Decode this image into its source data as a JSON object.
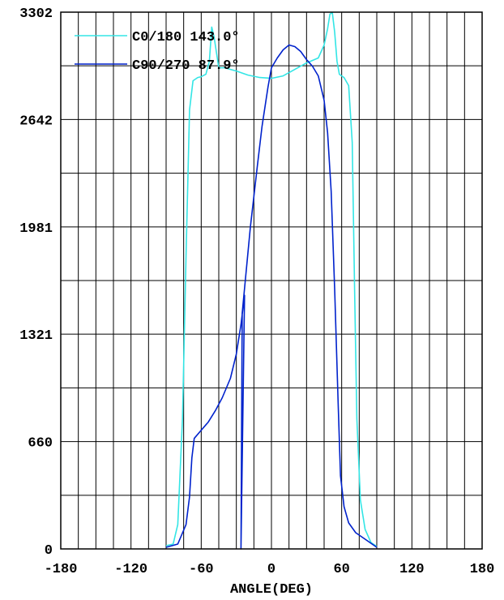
{
  "chart_data": {
    "type": "line",
    "title": "",
    "xlabel": "ANGLE(DEG)",
    "ylabel": "",
    "xlim": [
      -180,
      180
    ],
    "ylim": [
      0,
      3302
    ],
    "x_ticks": [
      -180,
      -120,
      -60,
      0,
      60,
      120,
      180
    ],
    "x_tick_labels": [
      "-180",
      "-120",
      "-60",
      "0",
      "60",
      "120",
      "180"
    ],
    "y_ticks": [
      0,
      660,
      1321,
      1981,
      2642,
      3302
    ],
    "y_tick_labels": [
      "0",
      "660",
      "1321",
      "1981",
      "2642",
      "3302"
    ],
    "grid": true,
    "legend_position": "top-left",
    "series": [
      {
        "name": "C0/180",
        "label": "C0/180 143.0°",
        "color": "#33e5e5",
        "points": [
          [
            -90,
            20
          ],
          [
            -84,
            30
          ],
          [
            -80,
            150
          ],
          [
            -76,
            800
          ],
          [
            -73,
            1800
          ],
          [
            -70,
            2700
          ],
          [
            -67,
            2880
          ],
          [
            -63,
            2900
          ],
          [
            -60,
            2905
          ],
          [
            -56,
            2920
          ],
          [
            -53,
            3000
          ],
          [
            -51,
            3210
          ],
          [
            -49,
            3150
          ],
          [
            -45,
            2960
          ],
          [
            -40,
            2960
          ],
          [
            -30,
            2940
          ],
          [
            -20,
            2915
          ],
          [
            -10,
            2900
          ],
          [
            0,
            2895
          ],
          [
            10,
            2910
          ],
          [
            20,
            2950
          ],
          [
            30,
            2990
          ],
          [
            40,
            3020
          ],
          [
            45,
            3100
          ],
          [
            48,
            3200
          ],
          [
            50,
            3290
          ],
          [
            52,
            3300
          ],
          [
            54,
            3180
          ],
          [
            56,
            3000
          ],
          [
            58,
            2920
          ],
          [
            62,
            2900
          ],
          [
            66,
            2850
          ],
          [
            69,
            2500
          ],
          [
            71,
            1600
          ],
          [
            73,
            800
          ],
          [
            76,
            300
          ],
          [
            80,
            120
          ],
          [
            85,
            40
          ],
          [
            90,
            15
          ]
        ]
      },
      {
        "name": "C90/270",
        "label": "C90/270 87.9°",
        "color": "#0022cc",
        "points": [
          [
            -90,
            10
          ],
          [
            -80,
            30
          ],
          [
            -73,
            150
          ],
          [
            -70,
            320
          ],
          [
            -68,
            560
          ],
          [
            -66,
            680
          ],
          [
            -60,
            730
          ],
          [
            -54,
            780
          ],
          [
            -48,
            850
          ],
          [
            -42,
            930
          ],
          [
            -35,
            1050
          ],
          [
            -30,
            1200
          ],
          [
            -26,
            1380
          ],
          [
            -23,
            1560
          ],
          [
            -26,
            0
          ],
          [
            -25,
            1450
          ],
          [
            -18,
            1980
          ],
          [
            -12,
            2360
          ],
          [
            -8,
            2600
          ],
          [
            -3,
            2840
          ],
          [
            0,
            2960
          ],
          [
            5,
            3020
          ],
          [
            10,
            3070
          ],
          [
            15,
            3100
          ],
          [
            20,
            3090
          ],
          [
            25,
            3060
          ],
          [
            30,
            3010
          ],
          [
            35,
            2970
          ],
          [
            40,
            2910
          ],
          [
            45,
            2760
          ],
          [
            48,
            2560
          ],
          [
            51,
            2200
          ],
          [
            54,
            1600
          ],
          [
            57,
            900
          ],
          [
            59,
            450
          ],
          [
            62,
            260
          ],
          [
            66,
            160
          ],
          [
            72,
            100
          ],
          [
            80,
            60
          ],
          [
            86,
            30
          ],
          [
            90,
            10
          ]
        ]
      }
    ]
  }
}
